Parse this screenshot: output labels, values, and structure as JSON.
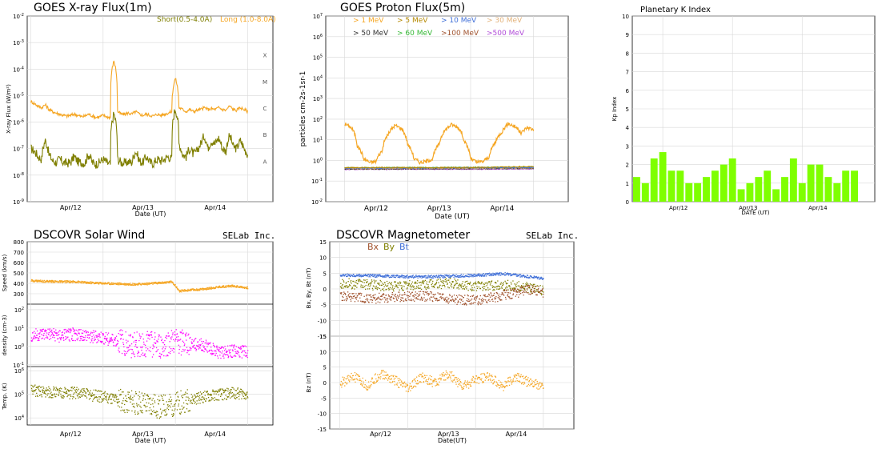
{
  "colors": {
    "xray_short": "#7f7f00",
    "xray_long": "#f5a623",
    "proton_1": "#f5a623",
    "proton_5": "#b58900",
    "proton_10": "#3f6fd8",
    "proton_30": "#e3b27a",
    "proton_50": "#303030",
    "proton_60": "#33b833",
    "proton_100": "#a0522d",
    "proton_500": "#b04ad8",
    "kp_bar": "#7fff00",
    "sw_speed": "#f5a623",
    "sw_density": "#ff00ff",
    "sw_temp": "#7f7f00",
    "bx": "#a0522d",
    "by": "#7f7f00",
    "bt": "#3f6fd8",
    "bz": "#f5a623",
    "grid": "#d8d8d8"
  },
  "chart_data": [
    {
      "id": "xray",
      "type": "line",
      "title": "GOES X-ray Flux(1m)",
      "xlabel": "Date (UT)",
      "ylabel": "X-ray Flux (W/m²)",
      "yscale": "log",
      "ylim": [
        1e-09,
        0.01
      ],
      "ytick_labels": [
        "10-2",
        "10-3",
        "10-4",
        "10-5",
        "10-6",
        "10-7",
        "10-8",
        "10-9"
      ],
      "xtick_labels": [
        "Apr/12",
        "Apr/13",
        "Apr/14"
      ],
      "flare_classes": [
        "X",
        "M",
        "C",
        "B",
        "A"
      ],
      "legend": [
        "Short(0.5-4.0A)",
        "Long (1.0-8.0A)"
      ],
      "series": [
        {
          "name": "Short(0.5-4.0A)",
          "x": [
            0,
            0.05,
            0.1,
            0.15,
            0.2,
            0.25,
            0.3,
            0.35,
            0.4,
            0.45,
            0.5,
            0.55,
            0.6,
            0.65,
            0.7,
            0.75,
            0.8,
            0.85,
            0.9,
            0.95,
            1.0,
            1.05,
            1.1,
            1.15,
            1.2,
            1.25,
            1.3,
            1.35,
            1.4,
            1.45,
            1.5,
            1.55,
            1.6,
            1.65,
            1.7,
            1.75,
            1.8,
            1.85,
            1.9,
            1.95,
            2.0,
            2.05,
            2.1,
            2.15,
            2.2,
            2.25,
            2.3,
            2.35,
            2.4,
            2.45,
            2.5,
            2.55,
            2.6,
            2.65,
            2.7,
            2.75,
            2.8,
            2.85,
            2.9,
            2.95,
            3.0
          ],
          "values": [
            1e-07,
            8e-08,
            5e-08,
            4e-08,
            2e-07,
            6e-08,
            3.5e-08,
            3e-08,
            4e-08,
            3e-08,
            2.8e-08,
            3e-08,
            5e-08,
            3.2e-08,
            3e-08,
            2.8e-08,
            6e-08,
            3e-08,
            2.6e-08,
            3e-08,
            4e-08,
            3e-08,
            2.5e-08,
            2e-06,
            4e-08,
            3e-08,
            2.8e-08,
            3.2e-08,
            3e-08,
            8e-08,
            3.5e-08,
            3e-08,
            5e-08,
            3e-08,
            2.8e-08,
            4e-08,
            3.5e-08,
            4e-08,
            5e-08,
            4e-08,
            3.2e-06,
            1.5e-07,
            6e-08,
            5e-08,
            1e-07,
            6e-08,
            8e-08,
            1.5e-07,
            3e-07,
            1e-07,
            2e-07,
            1.5e-07,
            2.5e-07,
            1e-07,
            8e-08,
            3e-07,
            1.2e-07,
            1e-07,
            2e-07,
            1e-07,
            6e-08
          ]
        },
        {
          "name": "Long (1.0-8.0A)",
          "x": [
            0,
            0.05,
            0.1,
            0.15,
            0.2,
            0.25,
            0.3,
            0.35,
            0.4,
            0.45,
            0.5,
            0.55,
            0.6,
            0.65,
            0.7,
            0.75,
            0.8,
            0.85,
            0.9,
            0.95,
            1.0,
            1.05,
            1.1,
            1.15,
            1.2,
            1.25,
            1.3,
            1.35,
            1.4,
            1.45,
            1.5,
            1.55,
            1.6,
            1.65,
            1.7,
            1.75,
            1.8,
            1.85,
            1.9,
            1.95,
            2.0,
            2.05,
            2.1,
            2.15,
            2.2,
            2.25,
            2.3,
            2.35,
            2.4,
            2.45,
            2.5,
            2.55,
            2.6,
            2.65,
            2.7,
            2.75,
            2.8,
            2.85,
            2.9,
            2.95,
            3.0
          ],
          "values": [
            6e-06,
            5e-06,
            4e-06,
            3.5e-06,
            4.5e-06,
            3e-06,
            2.5e-06,
            2.2e-06,
            2e-06,
            1.8e-06,
            1.7e-06,
            1.8e-06,
            2e-06,
            1.8e-06,
            1.6e-06,
            1.7e-06,
            2e-06,
            1.7e-06,
            1.5e-06,
            1.6e-06,
            1.8e-06,
            1.6e-06,
            1.5e-06,
            0.0002,
            2.5e-06,
            2e-06,
            2e-06,
            2.2e-06,
            2e-06,
            2.5e-06,
            2e-06,
            1.8e-06,
            2e-06,
            1.8e-06,
            1.7e-06,
            2e-06,
            1.8e-06,
            2e-06,
            2.2e-06,
            2.5e-06,
            4.5e-05,
            3.5e-06,
            3e-06,
            2.5e-06,
            3e-06,
            2.5e-06,
            2.8e-06,
            3e-06,
            3.5e-06,
            3e-06,
            3.2e-06,
            3e-06,
            3.5e-06,
            3e-06,
            2.8e-06,
            4e-06,
            3e-06,
            2.8e-06,
            3.5e-06,
            3e-06,
            2.5e-06
          ]
        }
      ]
    },
    {
      "id": "proton",
      "type": "line",
      "title": "GOES Proton Flux(5m)",
      "xlabel": "Date (UT)",
      "ylabel": "particles cm-2s-1sr-1",
      "yscale": "log",
      "ylim": [
        0.01,
        10000000.0
      ],
      "ytick_labels": [
        "10-2",
        "10-1",
        "100",
        "101",
        "102",
        "103",
        "104",
        "105",
        "106",
        "107"
      ],
      "xtick_labels": [
        "Apr/12",
        "Apr/13",
        "Apr/14"
      ],
      "legend": [
        "> 1 MeV",
        "> 5 MeV",
        "> 10 MeV",
        "> 30 MeV",
        "> 50 MeV",
        "> 60 MeV",
        ">100 MeV",
        ">500 MeV"
      ],
      "series": [
        {
          "name": "> 1 MeV",
          "x": [
            0,
            0.1,
            0.2,
            0.3,
            0.4,
            0.5,
            0.6,
            0.7,
            0.8,
            0.9,
            1.0,
            1.1,
            1.2,
            1.3,
            1.4,
            1.5,
            1.6,
            1.7,
            1.8,
            1.9,
            2.0,
            2.1,
            2.2,
            2.3,
            2.4,
            2.5,
            2.6,
            2.7,
            2.8,
            2.9,
            3.0
          ],
          "values": [
            60,
            40,
            5,
            1.2,
            0.8,
            0.9,
            3,
            20,
            50,
            35,
            6,
            1.2,
            0.8,
            0.9,
            1.2,
            6,
            30,
            55,
            40,
            8,
            1.2,
            0.8,
            0.9,
            1.5,
            8,
            25,
            60,
            45,
            20,
            40,
            30
          ]
        },
        {
          "name": "> 5 MeV",
          "x": [
            0,
            1,
            2,
            3
          ],
          "values": [
            0.45,
            0.45,
            0.45,
            0.5
          ]
        },
        {
          "name": "> 10 MeV",
          "x": [
            0,
            1,
            2,
            3
          ],
          "values": [
            0.42,
            0.43,
            0.44,
            0.45
          ]
        },
        {
          "name": "> 30 MeV",
          "x": [
            0,
            1,
            2,
            3
          ],
          "values": [
            0.4,
            0.41,
            0.42,
            0.43
          ]
        },
        {
          "name": "> 50 MeV",
          "x": [
            0,
            1,
            2,
            3
          ],
          "values": [
            0.38,
            0.39,
            0.4,
            0.41
          ]
        },
        {
          "name": "> 60 MeV",
          "x": [
            0,
            1,
            2,
            3
          ],
          "values": [
            0.44,
            0.45,
            0.46,
            0.48
          ]
        },
        {
          "name": ">100 MeV",
          "x": [
            0,
            1,
            2,
            3
          ],
          "values": [
            0.4,
            0.41,
            0.41,
            0.42
          ]
        },
        {
          "name": ">500 MeV",
          "x": [
            0,
            1,
            2,
            3
          ],
          "values": [
            0.37,
            0.38,
            0.38,
            0.39
          ]
        }
      ]
    },
    {
      "id": "kp",
      "type": "bar",
      "title": "Planetary K Index",
      "xlabel": "DATE (UT)",
      "ylabel": "Kp Index",
      "ylim": [
        0,
        10
      ],
      "ytick_labels": [
        "0",
        "1",
        "2",
        "3",
        "4",
        "5",
        "6",
        "7",
        "8",
        "9",
        "10"
      ],
      "xtick_labels": [
        "Apr/12",
        "Apr/13",
        "Apr/14"
      ],
      "values": [
        1.33,
        1.0,
        2.33,
        2.67,
        1.67,
        1.67,
        1.0,
        1.0,
        1.33,
        1.67,
        2.0,
        2.33,
        0.67,
        1.0,
        1.33,
        1.67,
        0.67,
        1.33,
        2.33,
        1.0,
        2.0,
        2.0,
        1.33,
        1.0,
        1.67,
        1.67
      ]
    },
    {
      "id": "solarwind",
      "type": "scatter",
      "title": "DSCOVR Solar Wind",
      "brand": "SELab Inc.",
      "xlabel": "Date (UT)",
      "xtick_labels": [
        "Apr/12",
        "Apr/13",
        "Apr/14"
      ],
      "panels": [
        {
          "ylabel": "Speed (km/s)",
          "ylim": [
            200,
            800
          ],
          "ytick_labels": [
            "800",
            "700",
            "600",
            "500",
            "400",
            "300"
          ],
          "x": [
            0,
            0.2,
            0.4,
            0.6,
            0.8,
            1.0,
            1.2,
            1.4,
            1.6,
            1.8,
            1.95,
            2.05,
            2.2,
            2.4,
            2.6,
            2.8,
            3.0
          ],
          "values": [
            430,
            425,
            420,
            420,
            410,
            405,
            400,
            395,
            400,
            410,
            420,
            330,
            340,
            350,
            370,
            380,
            360
          ]
        },
        {
          "ylabel": "density (cm-3)",
          "yscale": "log",
          "ylim": [
            0.08,
            200
          ],
          "ytick_labels": [
            "102",
            "101",
            "100",
            "10-1"
          ],
          "x": [
            0,
            0.2,
            0.4,
            0.6,
            0.8,
            1.0,
            1.2,
            1.4,
            1.6,
            1.8,
            2.0,
            2.2,
            2.4,
            2.6,
            2.8,
            3.0
          ],
          "values": [
            4,
            5,
            4,
            5,
            4,
            3,
            2,
            1.2,
            1.5,
            1.0,
            2.0,
            1.5,
            1.2,
            0.5,
            0.6,
            0.5
          ]
        },
        {
          "ylabel": "Temp. (K)",
          "yscale": "log",
          "ylim": [
            5000,
            1500000
          ],
          "ytick_labels": [
            "106",
            "105",
            "104"
          ],
          "x": [
            0,
            0.2,
            0.4,
            0.6,
            0.8,
            1.0,
            1.2,
            1.4,
            1.6,
            1.8,
            2.0,
            2.2,
            2.4,
            2.6,
            2.8,
            3.0
          ],
          "values": [
            150000,
            140000,
            120000,
            120000,
            100000,
            80000,
            60000,
            50000,
            40000,
            30000,
            40000,
            60000,
            80000,
            100000,
            120000,
            110000
          ]
        }
      ]
    },
    {
      "id": "magnetometer",
      "type": "scatter",
      "title": "DSCOVR Magnetometer",
      "brand": "SELab Inc.",
      "xlabel": "Date(UT)",
      "xtick_labels": [
        "Apr/12",
        "Apr/13",
        "Apr/14"
      ],
      "legend": [
        "Bx",
        "By",
        "Bt"
      ],
      "panels": [
        {
          "ylabel": "Bx, By, Bt (nT)",
          "ylim": [
            -15,
            15
          ],
          "ytick_labels": [
            "15",
            "10",
            "5",
            "0",
            "-5",
            "-10",
            "-15"
          ],
          "series": [
            {
              "name": "Bt",
              "x": [
                0,
                0.4,
                0.8,
                1.2,
                1.6,
                2.0,
                2.4,
                2.8,
                3.0
              ],
              "values": [
                4.5,
                4.4,
                4.2,
                4.0,
                4.2,
                4.5,
                5.0,
                4.0,
                3.5
              ]
            },
            {
              "name": "By",
              "x": [
                0,
                0.4,
                0.8,
                1.2,
                1.6,
                2.0,
                2.4,
                2.8,
                3.0
              ],
              "values": [
                2.0,
                1.5,
                1.0,
                1.5,
                2.0,
                1.0,
                1.5,
                0.5,
                -0.5
              ]
            },
            {
              "name": "Bx",
              "x": [
                0,
                0.4,
                0.8,
                1.2,
                1.6,
                2.0,
                2.4,
                2.8,
                3.0
              ],
              "values": [
                -2.0,
                -3.0,
                -2.5,
                -2.0,
                -3.0,
                -3.5,
                -2.0,
                0.0,
                -1.0
              ]
            }
          ]
        },
        {
          "ylabel": "Bz (nT)",
          "ylim": [
            -15,
            15
          ],
          "ytick_labels": [
            "15",
            "10",
            "5",
            "0",
            "-5",
            "-10",
            "-15"
          ],
          "series": [
            {
              "name": "Bz",
              "x": [
                0,
                0.2,
                0.4,
                0.6,
                0.8,
                1.0,
                1.2,
                1.4,
                1.6,
                1.8,
                2.0,
                2.2,
                2.4,
                2.6,
                2.8,
                3.0
              ],
              "values": [
                0,
                2,
                -1,
                3,
                1,
                -2,
                2,
                0,
                3,
                -1,
                1,
                2,
                -1,
                2,
                0,
                -1
              ]
            }
          ]
        }
      ]
    }
  ]
}
